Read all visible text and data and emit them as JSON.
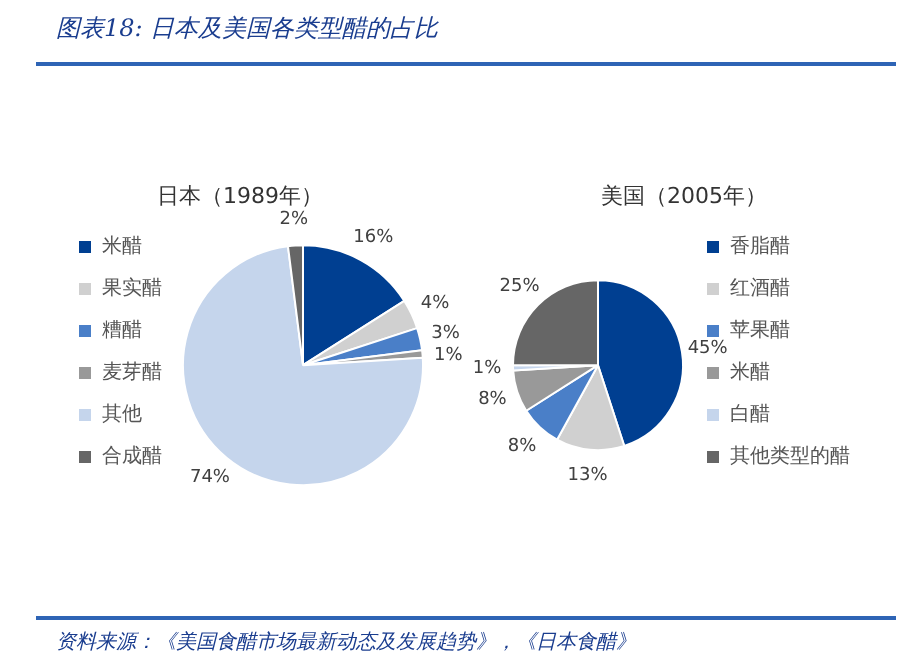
{
  "chart_data": [
    {
      "type": "other",
      "title": "图表18:  日本及美国各类型醋的占比",
      "annotations": [
        "资料来源：《美国食醋市场最新动态及发展趋势》，《日本食醋》"
      ]
    },
    {
      "type": "pie",
      "title": "日本（1989年）",
      "categories": [
        "米醋",
        "果实醋",
        "糟醋",
        "麦芽醋",
        "其他",
        "合成醋"
      ],
      "values": [
        16,
        4,
        3,
        1,
        74,
        2
      ],
      "colors": [
        "#003f91",
        "#d0d0d0",
        "#4a7fc8",
        "#999999",
        "#c5d5ec",
        "#666666"
      ],
      "value_labels": [
        "16%",
        "4%",
        "3%",
        "1%",
        "74%",
        "2%"
      ],
      "legend": "left"
    },
    {
      "type": "pie",
      "title": "美国（2005年）",
      "categories": [
        "香脂醋",
        "红酒醋",
        "苹果醋",
        "米醋",
        "白醋",
        "其他类型的醋"
      ],
      "values": [
        45,
        13,
        8,
        8,
        1,
        25
      ],
      "colors": [
        "#003f91",
        "#d0d0d0",
        "#4a7fc8",
        "#999999",
        "#c5d5ec",
        "#666666"
      ],
      "value_labels": [
        "45%",
        "13%",
        "8%",
        "8%",
        "1%",
        "25%"
      ],
      "legend": "right"
    }
  ]
}
